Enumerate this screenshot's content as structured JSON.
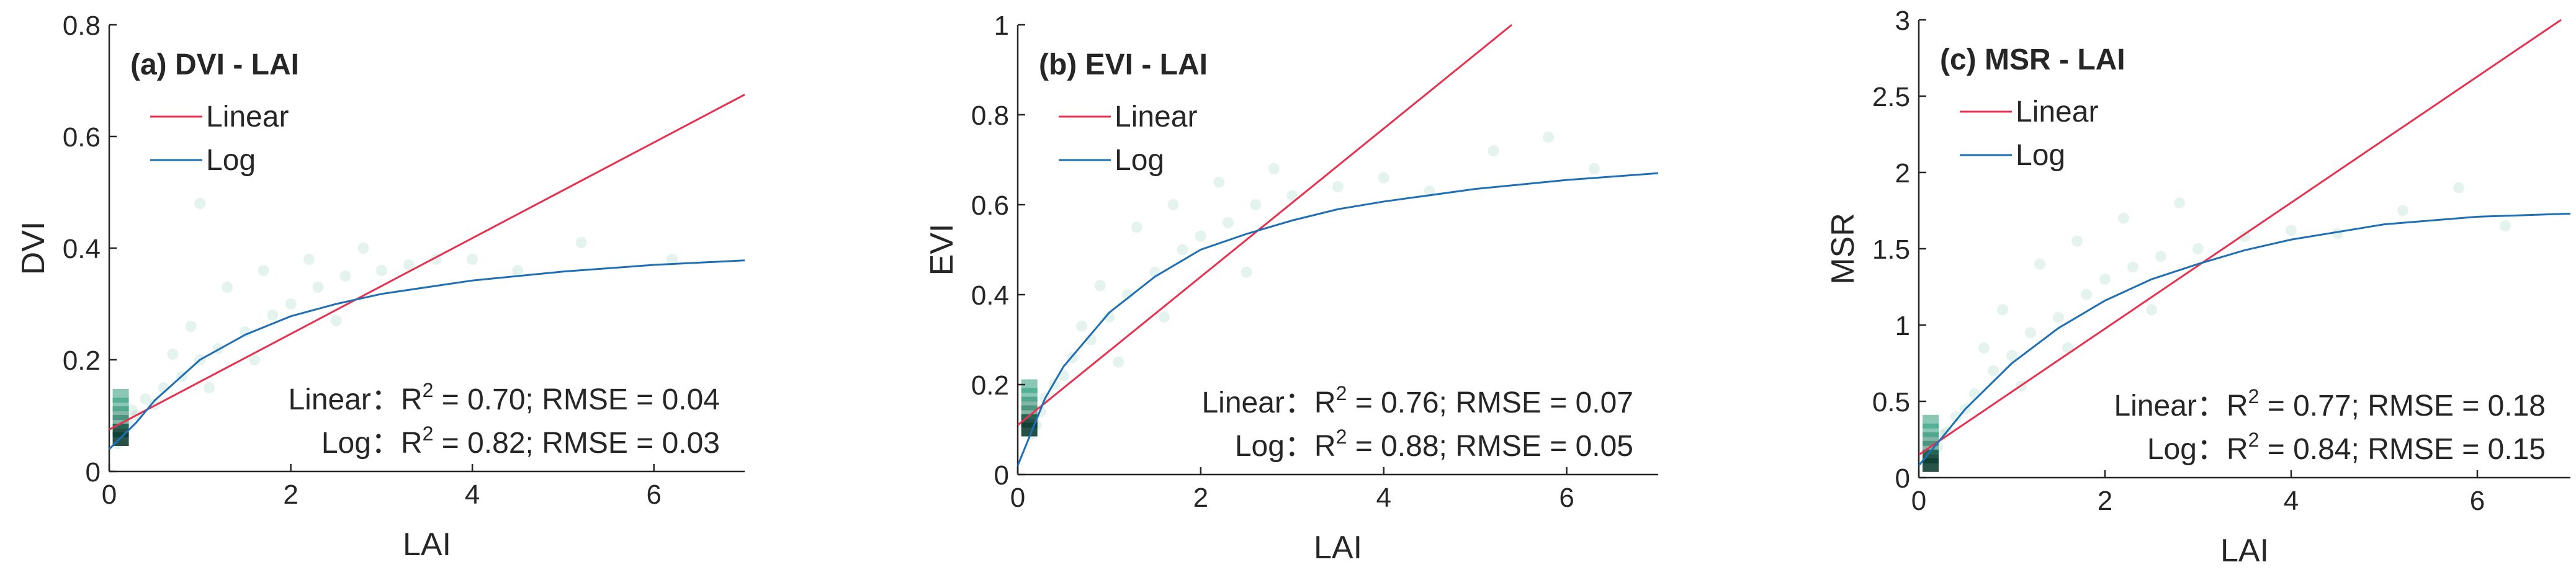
{
  "chart_data": [
    {
      "type": "scatter",
      "title": "(a) DVI - LAI",
      "xlabel": "LAI",
      "ylabel": "DVI",
      "xlim": [
        0,
        7
      ],
      "ylim": [
        0,
        0.8
      ],
      "xticks": [
        "0",
        "2",
        "4",
        "6"
      ],
      "yticks": [
        "0",
        "0.2",
        "0.4",
        "0.6",
        "0.8"
      ],
      "grid": false,
      "legend_position": "top-left",
      "legend": [
        "Linear",
        "Log"
      ],
      "colors": {
        "linear": "#e8304f",
        "log": "#1f6fb4",
        "density": "#2a9a79"
      },
      "series": [
        {
          "name": "Linear",
          "x": [
            0,
            7
          ],
          "y": [
            0.075,
            0.675
          ]
        },
        {
          "name": "Log",
          "x": [
            0,
            0.3,
            0.5,
            1,
            1.5,
            2,
            2.5,
            3,
            3.5,
            4,
            5,
            6,
            7
          ],
          "y": [
            0.04,
            0.088,
            0.127,
            0.2,
            0.245,
            0.278,
            0.3,
            0.318,
            0.33,
            0.342,
            0.358,
            0.37,
            0.378
          ]
        }
      ],
      "stats": [
        {
          "prefix": "Linear：R",
          "sup": "2",
          "suffix": " = 0.70; RMSE = 0.04"
        },
        {
          "prefix": "Log：R",
          "sup": "2",
          "suffix": " = 0.82; RMSE = 0.03"
        }
      ],
      "density_points": [
        [
          0.15,
          0.07
        ],
        [
          0.2,
          0.09
        ],
        [
          0.1,
          0.05
        ],
        [
          0.25,
          0.11
        ],
        [
          0.3,
          0.1
        ],
        [
          0.4,
          0.13
        ],
        [
          0.5,
          0.12
        ],
        [
          0.6,
          0.15
        ],
        [
          0.8,
          0.17
        ],
        [
          1,
          0.2
        ],
        [
          1.2,
          0.22
        ],
        [
          1.5,
          0.25
        ],
        [
          1.8,
          0.28
        ],
        [
          2,
          0.3
        ],
        [
          2.3,
          0.33
        ],
        [
          2.6,
          0.35
        ],
        [
          3,
          0.36
        ],
        [
          3.3,
          0.37
        ],
        [
          3.6,
          0.38
        ],
        [
          4,
          0.38
        ],
        [
          1.3,
          0.33
        ],
        [
          1.7,
          0.36
        ],
        [
          2.2,
          0.38
        ],
        [
          2.8,
          0.4
        ],
        [
          1.1,
          0.15
        ],
        [
          1.6,
          0.2
        ],
        [
          2.5,
          0.27
        ],
        [
          0.9,
          0.26
        ],
        [
          0.7,
          0.21
        ],
        [
          4.5,
          0.36
        ],
        [
          5.2,
          0.41
        ],
        [
          6.2,
          0.38
        ],
        [
          1,
          0.48
        ]
      ]
    },
    {
      "type": "scatter",
      "title": "(b) EVI - LAI",
      "xlabel": "LAI",
      "ylabel": "EVI",
      "xlim": [
        0,
        7
      ],
      "ylim": [
        0,
        1
      ],
      "xticks": [
        "0",
        "2",
        "4",
        "6"
      ],
      "yticks": [
        "0",
        "0.2",
        "0.4",
        "0.6",
        "0.8",
        "1"
      ],
      "grid": false,
      "legend_position": "top-left",
      "legend": [
        "Linear",
        "Log"
      ],
      "colors": {
        "linear": "#e8304f",
        "log": "#1f6fb4",
        "density": "#2a9a79"
      },
      "series": [
        {
          "name": "Linear",
          "x": [
            0,
            5.4
          ],
          "y": [
            0.11,
            1.0
          ]
        },
        {
          "name": "Log",
          "x": [
            0,
            0.3,
            0.5,
            1,
            1.5,
            2,
            2.5,
            3,
            3.5,
            4,
            5,
            6,
            7
          ],
          "y": [
            0.02,
            0.17,
            0.24,
            0.36,
            0.44,
            0.5,
            0.535,
            0.565,
            0.59,
            0.607,
            0.635,
            0.655,
            0.67
          ]
        }
      ],
      "stats": [
        {
          "prefix": "Linear：R",
          "sup": "2",
          "suffix": " = 0.76; RMSE = 0.07"
        },
        {
          "prefix": "Log：R",
          "sup": "2",
          "suffix": " = 0.88; RMSE = 0.05"
        }
      ],
      "density_points": [
        [
          0.2,
          0.11
        ],
        [
          0.25,
          0.14
        ],
        [
          0.15,
          0.09
        ],
        [
          0.3,
          0.17
        ],
        [
          0.4,
          0.2
        ],
        [
          0.5,
          0.22
        ],
        [
          0.6,
          0.26
        ],
        [
          0.8,
          0.3
        ],
        [
          1,
          0.35
        ],
        [
          1.2,
          0.4
        ],
        [
          1.5,
          0.45
        ],
        [
          1.8,
          0.5
        ],
        [
          2,
          0.53
        ],
        [
          2.3,
          0.56
        ],
        [
          2.6,
          0.6
        ],
        [
          3,
          0.62
        ],
        [
          3.5,
          0.64
        ],
        [
          4,
          0.66
        ],
        [
          1.3,
          0.55
        ],
        [
          1.7,
          0.6
        ],
        [
          2.2,
          0.65
        ],
        [
          2.8,
          0.68
        ],
        [
          1.1,
          0.25
        ],
        [
          1.6,
          0.35
        ],
        [
          2.5,
          0.45
        ],
        [
          0.9,
          0.42
        ],
        [
          0.7,
          0.33
        ],
        [
          4.5,
          0.63
        ],
        [
          5.2,
          0.72
        ],
        [
          6.3,
          0.68
        ],
        [
          5.8,
          0.75
        ]
      ]
    },
    {
      "type": "scatter",
      "title": "(c) MSR - LAI",
      "xlabel": "LAI",
      "ylabel": "MSR",
      "xlim": [
        0,
        7
      ],
      "ylim": [
        0,
        3
      ],
      "xticks": [
        "0",
        "2",
        "4",
        "6"
      ],
      "yticks": [
        "0",
        "0.5",
        "1",
        "1.5",
        "2",
        "2.5",
        "3"
      ],
      "grid": false,
      "legend_position": "top-left",
      "legend": [
        "Linear",
        "Log"
      ],
      "colors": {
        "linear": "#e8304f",
        "log": "#1f6fb4",
        "density": "#2a9a79"
      },
      "series": [
        {
          "name": "Linear",
          "x": [
            0,
            6.9
          ],
          "y": [
            0.15,
            3.0
          ]
        },
        {
          "name": "Log",
          "x": [
            0,
            0.3,
            0.5,
            1,
            1.5,
            2,
            2.5,
            3,
            3.5,
            4,
            5,
            6,
            7
          ],
          "y": [
            0.08,
            0.3,
            0.45,
            0.75,
            0.98,
            1.16,
            1.3,
            1.4,
            1.49,
            1.56,
            1.66,
            1.71,
            1.73
          ]
        }
      ],
      "stats": [
        {
          "prefix": "Linear：R",
          "sup": "2",
          "suffix": " = 0.77; RMSE = 0.18"
        },
        {
          "prefix": "Log：R",
          "sup": "2",
          "suffix": " = 0.84; RMSE = 0.15"
        }
      ],
      "density_points": [
        [
          0.15,
          0.15
        ],
        [
          0.2,
          0.2
        ],
        [
          0.1,
          0.12
        ],
        [
          0.25,
          0.28
        ],
        [
          0.3,
          0.3
        ],
        [
          0.4,
          0.4
        ],
        [
          0.5,
          0.45
        ],
        [
          0.6,
          0.55
        ],
        [
          0.8,
          0.7
        ],
        [
          1,
          0.8
        ],
        [
          1.2,
          0.95
        ],
        [
          1.5,
          1.05
        ],
        [
          1.8,
          1.2
        ],
        [
          2,
          1.3
        ],
        [
          2.3,
          1.38
        ],
        [
          2.6,
          1.45
        ],
        [
          3,
          1.5
        ],
        [
          3.5,
          1.58
        ],
        [
          4,
          1.62
        ],
        [
          1.3,
          1.4
        ],
        [
          1.7,
          1.55
        ],
        [
          2.2,
          1.7
        ],
        [
          2.8,
          1.8
        ],
        [
          1.1,
          0.6
        ],
        [
          1.6,
          0.85
        ],
        [
          2.5,
          1.1
        ],
        [
          0.9,
          1.1
        ],
        [
          0.7,
          0.85
        ],
        [
          4.5,
          1.6
        ],
        [
          5.2,
          1.75
        ],
        [
          6.3,
          1.65
        ],
        [
          5.8,
          1.9
        ]
      ]
    }
  ]
}
